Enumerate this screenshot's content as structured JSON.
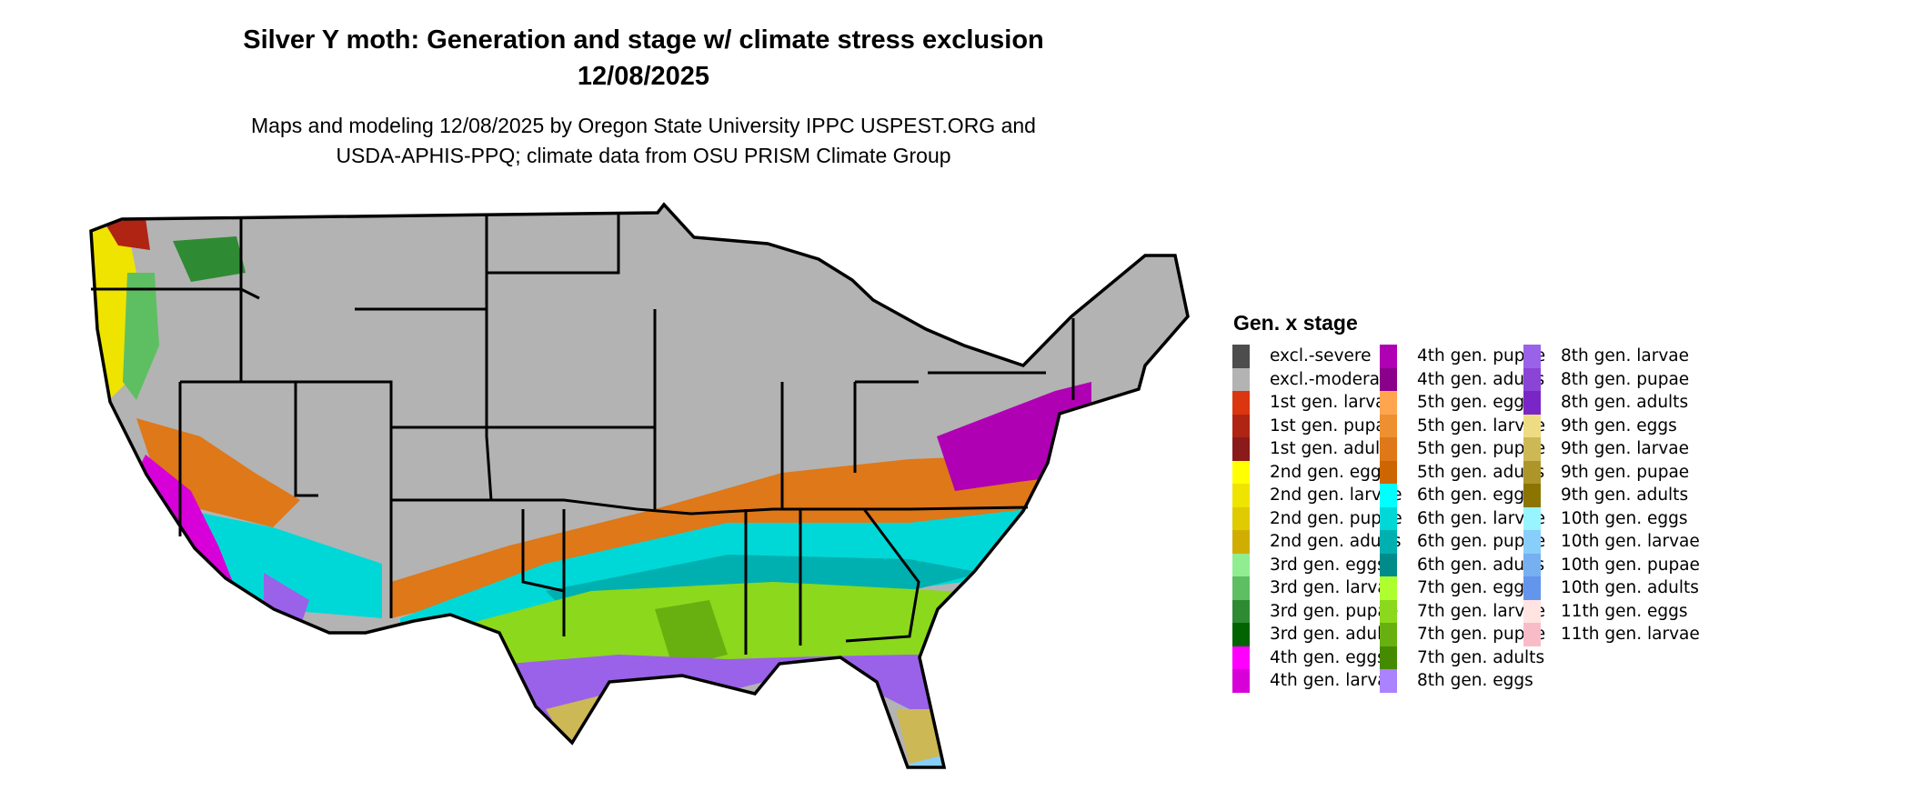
{
  "title": {
    "line1": "Silver Y moth: Generation and stage w/ climate stress exclusion",
    "line2": "12/08/2025"
  },
  "subtitle": {
    "line1": "Maps and modeling 12/08/2025 by Oregon State University IPPC USPEST.ORG and",
    "line2": "USDA-APHIS-PPQ; climate data from OSU PRISM Climate Group"
  },
  "legend": {
    "title": "Gen. x stage",
    "items": [
      {
        "label": "excl.-severe",
        "color": "#4d4d4d"
      },
      {
        "label": "excl.-moderate",
        "color": "#b3b3b3"
      },
      {
        "label": "1st gen. larvae",
        "color": "#dc3610"
      },
      {
        "label": "1st gen. pupae",
        "color": "#b02414"
      },
      {
        "label": "1st gen. adults",
        "color": "#8b1a1a"
      },
      {
        "label": "2nd gen. eggs",
        "color": "#ffff00"
      },
      {
        "label": "2nd gen. larvae",
        "color": "#eee400"
      },
      {
        "label": "2nd gen. pupae",
        "color": "#dfcb00"
      },
      {
        "label": "2nd gen. adults",
        "color": "#d0ae00"
      },
      {
        "label": "3rd gen. eggs",
        "color": "#90ee90"
      },
      {
        "label": "3rd gen. larvae",
        "color": "#5ebf62"
      },
      {
        "label": "3rd gen. pupae",
        "color": "#2e8b33"
      },
      {
        "label": "3rd gen. adults",
        "color": "#006400"
      },
      {
        "label": "4th gen. eggs",
        "color": "#ff00ff"
      },
      {
        "label": "4th gen. larvae",
        "color": "#d800d8"
      },
      {
        "label": "4th gen. pupae",
        "color": "#b000b4"
      },
      {
        "label": "4th gen. adults",
        "color": "#8b008b"
      },
      {
        "label": "5th gen. eggs",
        "color": "#ffa54f"
      },
      {
        "label": "5th gen. larvae",
        "color": "#ee9030"
      },
      {
        "label": "5th gen. pupae",
        "color": "#de7818"
      },
      {
        "label": "5th gen. adults",
        "color": "#cd6600"
      },
      {
        "label": "6th gen. eggs",
        "color": "#00ffff"
      },
      {
        "label": "6th gen. larvae",
        "color": "#00d8d8"
      },
      {
        "label": "6th gen. pupae",
        "color": "#00b0b0"
      },
      {
        "label": "6th gen. adults",
        "color": "#008b8b"
      },
      {
        "label": "7th gen. eggs",
        "color": "#adff2f"
      },
      {
        "label": "7th gen. larvae",
        "color": "#8cd81c"
      },
      {
        "label": "7th gen. pupae",
        "color": "#68b010"
      },
      {
        "label": "7th gen. adults",
        "color": "#458b00"
      },
      {
        "label": "8th gen. eggs",
        "color": "#ab82ff"
      },
      {
        "label": "8th gen. larvae",
        "color": "#9a62e8"
      },
      {
        "label": "8th gen. pupae",
        "color": "#8a44d6"
      },
      {
        "label": "8th gen. adults",
        "color": "#7a26c6"
      },
      {
        "label": "9th gen. eggs",
        "color": "#eedc82"
      },
      {
        "label": "9th gen. larvae",
        "color": "#cdb856"
      },
      {
        "label": "9th gen. pupae",
        "color": "#ad952a"
      },
      {
        "label": "9th gen. adults",
        "color": "#8b7500"
      },
      {
        "label": "10th gen. eggs",
        "color": "#98f5ff"
      },
      {
        "label": "10th gen. larvae",
        "color": "#87cefa"
      },
      {
        "label": "10th gen. pupae",
        "color": "#76b0f0"
      },
      {
        "label": "10th gen. adults",
        "color": "#6495ed"
      },
      {
        "label": "11th gen. eggs",
        "color": "#ffe4e1"
      },
      {
        "label": "11th gen. larvae",
        "color": "#f8bcc8"
      }
    ]
  }
}
